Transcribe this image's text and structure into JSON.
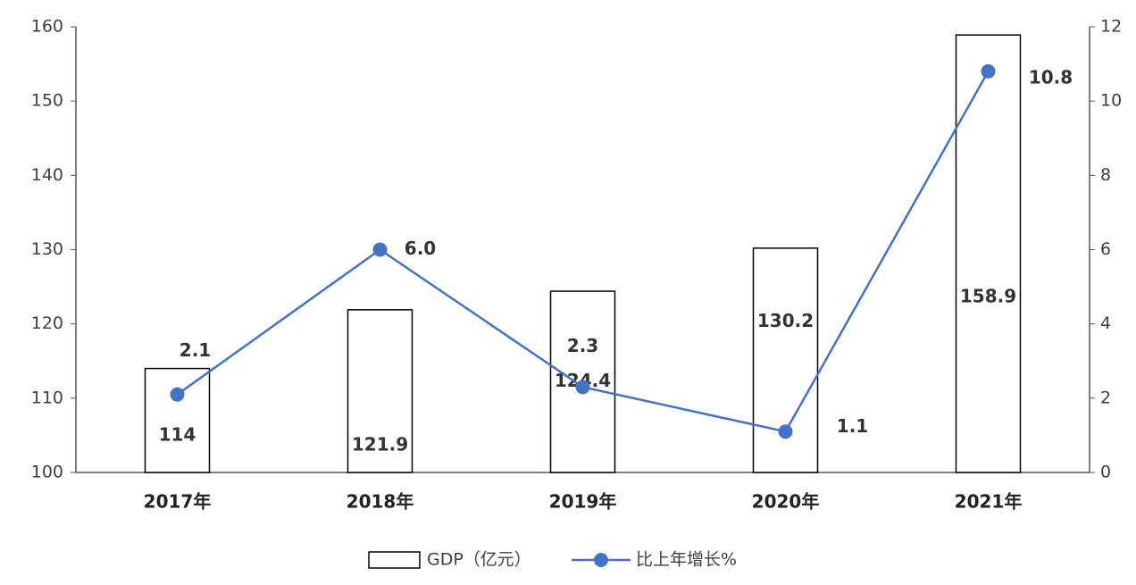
{
  "chart_data": {
    "type": "bar-line",
    "categories": [
      "2017年",
      "2018年",
      "2019年",
      "2020年",
      "2021年"
    ],
    "series": [
      {
        "name": "GDP（亿元）",
        "type": "bar",
        "color": "#ffffff",
        "values": [
          114,
          121.9,
          124.4,
          130.2,
          158.9
        ]
      },
      {
        "name": "比上年增长%",
        "type": "line",
        "axis": "y2",
        "color": "#4472c4",
        "values": [
          2.1,
          6,
          2.3,
          1.1,
          10.8
        ],
        "value_labels": [
          "2.1",
          "6.0",
          "2.3",
          "1.1",
          "10.8"
        ]
      }
    ],
    "ylim": [
      100,
      160
    ],
    "yticks": [
      100,
      110,
      120,
      130,
      140,
      150,
      160
    ],
    "y2lim": [
      0,
      12
    ],
    "y2ticks": [
      0,
      2,
      4,
      6,
      8,
      10,
      12
    ],
    "legend": "bottom"
  }
}
